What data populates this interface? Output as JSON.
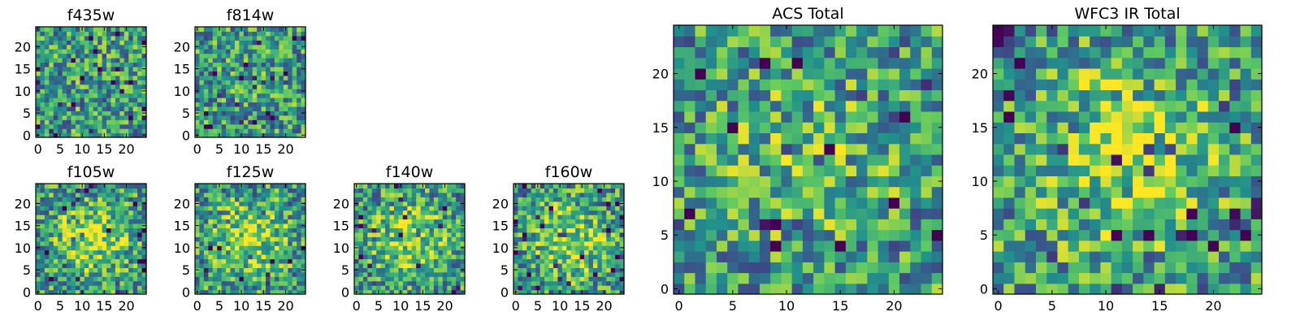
{
  "figure": {
    "colormap": "viridis",
    "colormap_stops": [
      "#440154",
      "#3b528b",
      "#21918c",
      "#5ec962",
      "#fde725"
    ]
  },
  "chart_data": [
    {
      "type": "heatmap",
      "title": "f435w",
      "grid_size": 25,
      "xlim": [
        0,
        24
      ],
      "ylim": [
        0,
        24
      ],
      "xticks": [
        "0",
        "5",
        "10",
        "15",
        "20"
      ],
      "yticks": [
        "0",
        "5",
        "10",
        "15",
        "20"
      ],
      "center_brightness": "low",
      "values": []
    },
    {
      "type": "heatmap",
      "title": "f814w",
      "grid_size": 25,
      "xlim": [
        0,
        24
      ],
      "ylim": [
        0,
        24
      ],
      "xticks": [
        "0",
        "5",
        "10",
        "15",
        "20"
      ],
      "yticks": [
        "0",
        "5",
        "10",
        "15",
        "20"
      ],
      "center_brightness": "low",
      "values": []
    },
    {
      "type": "heatmap",
      "title": "f105w",
      "grid_size": 25,
      "xlim": [
        0,
        24
      ],
      "ylim": [
        0,
        24
      ],
      "xticks": [
        "0",
        "5",
        "10",
        "15",
        "20"
      ],
      "yticks": [
        "0",
        "5",
        "10",
        "15",
        "20"
      ],
      "center_brightness": "high",
      "values": []
    },
    {
      "type": "heatmap",
      "title": "f125w",
      "grid_size": 25,
      "xlim": [
        0,
        24
      ],
      "ylim": [
        0,
        24
      ],
      "xticks": [
        "0",
        "5",
        "10",
        "15",
        "20"
      ],
      "yticks": [
        "0",
        "5",
        "10",
        "15",
        "20"
      ],
      "center_brightness": "high",
      "values": []
    },
    {
      "type": "heatmap",
      "title": "f140w",
      "grid_size": 25,
      "xlim": [
        0,
        24
      ],
      "ylim": [
        0,
        24
      ],
      "xticks": [
        "0",
        "5",
        "10",
        "15",
        "20"
      ],
      "yticks": [
        "0",
        "5",
        "10",
        "15",
        "20"
      ],
      "center_brightness": "high",
      "values": []
    },
    {
      "type": "heatmap",
      "title": "f160w",
      "grid_size": 25,
      "xlim": [
        0,
        24
      ],
      "ylim": [
        0,
        24
      ],
      "xticks": [
        "0",
        "5",
        "10",
        "15",
        "20"
      ],
      "yticks": [
        "0",
        "5",
        "10",
        "15",
        "20"
      ],
      "center_brightness": "high",
      "values": []
    },
    {
      "type": "heatmap",
      "title": "ACS Total",
      "grid_size": 25,
      "xlim": [
        0,
        24
      ],
      "ylim": [
        0,
        24
      ],
      "xticks": [
        "0",
        "5",
        "10",
        "15",
        "20"
      ],
      "yticks": [
        "0",
        "5",
        "10",
        "15",
        "20"
      ],
      "center_brightness": "medium",
      "values": []
    },
    {
      "type": "heatmap",
      "title": "WFC3 IR Total",
      "grid_size": 25,
      "xlim": [
        0,
        24
      ],
      "ylim": [
        0,
        24
      ],
      "xticks": [
        "0",
        "5",
        "10",
        "15",
        "20"
      ],
      "yticks": [
        "0",
        "5",
        "10",
        "15",
        "20"
      ],
      "center_brightness": "high",
      "values": []
    }
  ]
}
